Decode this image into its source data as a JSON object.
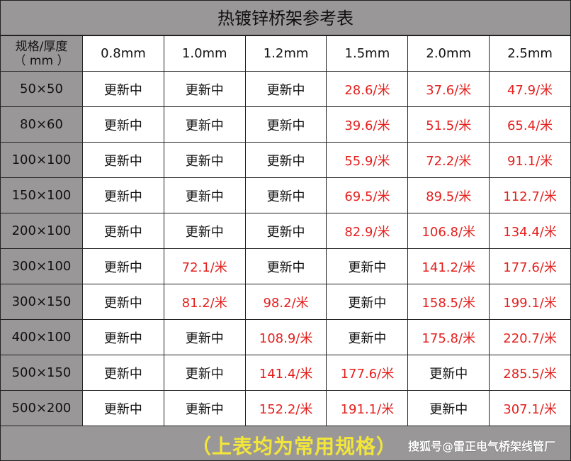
{
  "title": "热镀锌桥架参考表",
  "header": {
    "corner_line1": "规格/厚度",
    "corner_line2": "（ mm ）",
    "thicknesses": [
      "0.8mm",
      "1.0mm",
      "1.2mm",
      "1.5mm",
      "2.0mm",
      "2.5mm"
    ]
  },
  "rows": [
    {
      "spec": "50×50",
      "cells": [
        "更新中",
        "更新中",
        "更新中",
        "28.6/米",
        "37.6/米",
        "47.9/米"
      ]
    },
    {
      "spec": "80×60",
      "cells": [
        "更新中",
        "更新中",
        "更新中",
        "39.6/米",
        "51.5/米",
        "65.4/米"
      ]
    },
    {
      "spec": "100×100",
      "cells": [
        "更新中",
        "更新中",
        "更新中",
        "55.9/米",
        "72.2/米",
        "91.1/米"
      ]
    },
    {
      "spec": "150×100",
      "cells": [
        "更新中",
        "更新中",
        "更新中",
        "69.5/米",
        "89.5/米",
        "112.7/米"
      ]
    },
    {
      "spec": "200×100",
      "cells": [
        "更新中",
        "更新中",
        "更新中",
        "82.9/米",
        "106.8/米",
        "134.4/米"
      ]
    },
    {
      "spec": "300×100",
      "cells": [
        "更新中",
        "72.1/米",
        "更新中",
        "更新中",
        "141.2/米",
        "177.6/米"
      ]
    },
    {
      "spec": "300×150",
      "cells": [
        "更新中",
        "81.2/米",
        "98.2/米",
        "更新中",
        "158.5/米",
        "199.1/米"
      ]
    },
    {
      "spec": "400×100",
      "cells": [
        "更新中",
        "更新中",
        "108.9/米",
        "更新中",
        "175.8/米",
        "220.7/米"
      ]
    },
    {
      "spec": "500×150",
      "cells": [
        "更新中",
        "更新中",
        "141.4/米",
        "177.6/米",
        "更新中",
        "285.5/米"
      ]
    },
    {
      "spec": "500×200",
      "cells": [
        "更新中",
        "更新中",
        "152.2/米",
        "191.1/米",
        "更新中",
        "307.1/米"
      ]
    }
  ],
  "footer": {
    "note": "（上表均为常用规格）",
    "credit": "搜狐号@雷正电气桥架线管厂"
  },
  "colors": {
    "background": "#9a9798",
    "price": "#e3201d",
    "note": "#f2e63a"
  }
}
